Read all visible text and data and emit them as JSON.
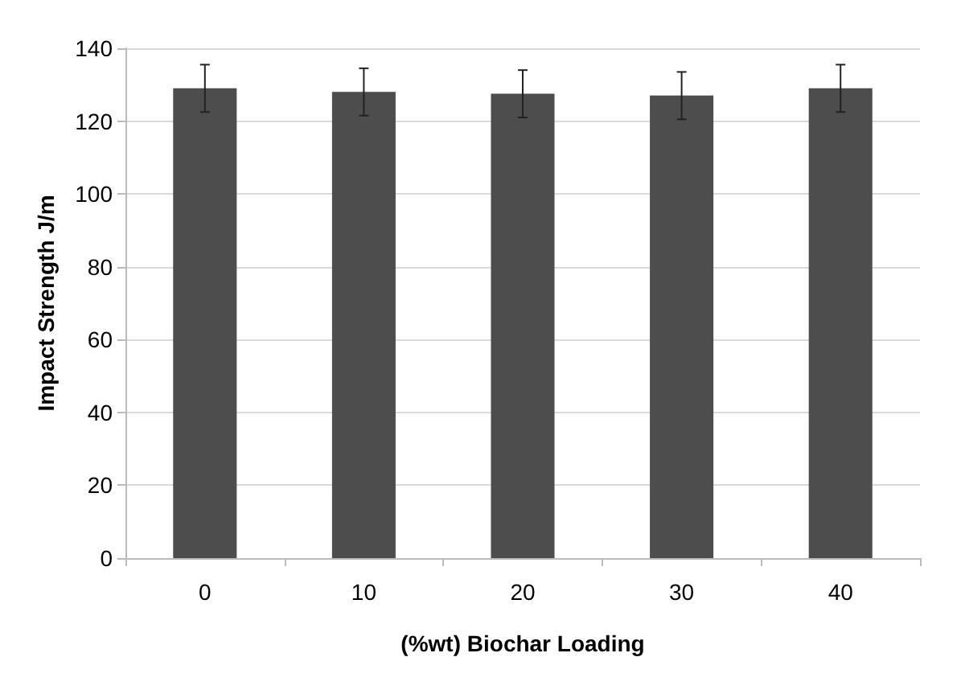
{
  "chart_data": {
    "type": "bar",
    "xlabel": "(%wt) Biochar Loading",
    "ylabel": "Impact Strength J/m",
    "categories": [
      "0",
      "10",
      "20",
      "30",
      "40"
    ],
    "values": [
      129,
      128,
      127.5,
      127,
      129
    ],
    "errors": [
      6.5,
      6.5,
      6.5,
      6.5,
      6.5
    ],
    "color": "#4d4d4d",
    "ylim": [
      0,
      140
    ],
    "yticks": [
      0,
      20,
      40,
      60,
      80,
      100,
      120,
      140
    ],
    "grid": "y"
  }
}
